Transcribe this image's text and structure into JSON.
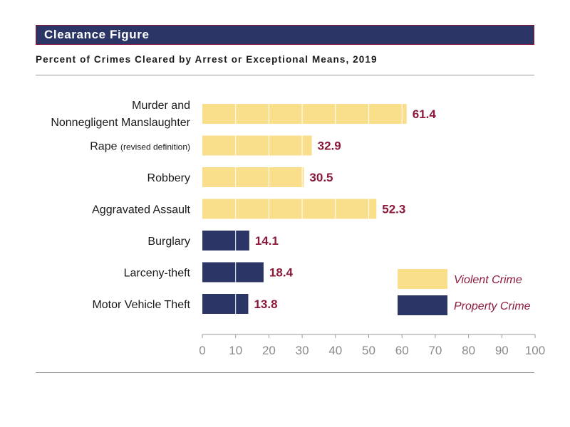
{
  "header": {
    "banner_title": "Clearance Figure",
    "subtitle": "Percent of Crimes Cleared by Arrest or Exceptional Means, 2019"
  },
  "colors": {
    "banner_bg": "#2b3566",
    "banner_border": "#8b1a3a",
    "violent": "#f9de8c",
    "property": "#2b3566",
    "label_value": "#8b1a3a",
    "legend_text": "#8b1a3a"
  },
  "chart_data": {
    "type": "bar",
    "orientation": "horizontal",
    "categories": [
      [
        "Murder and",
        "Nonnegligent Manslaughter"
      ],
      [
        "Rape (revised definition)"
      ],
      [
        "Robbery"
      ],
      [
        "Aggravated Assault"
      ],
      [
        "Burglary"
      ],
      [
        "Larceny-theft"
      ],
      [
        "Motor Vehicle Theft"
      ]
    ],
    "values": [
      61.4,
      32.9,
      30.5,
      52.3,
      14.1,
      18.4,
      13.8
    ],
    "value_labels": [
      "61.4",
      "32.9",
      "30.5",
      "52.3",
      "14.1",
      "18.4",
      "13.8"
    ],
    "groups": [
      "violent",
      "violent",
      "violent",
      "violent",
      "property",
      "property",
      "property"
    ],
    "series": [
      {
        "key": "violent",
        "name": "Violent Crime"
      },
      {
        "key": "property",
        "name": "Property Crime"
      }
    ],
    "xlim": [
      0,
      100
    ],
    "xticks": [
      0,
      10,
      20,
      30,
      40,
      50,
      60,
      70,
      80,
      90,
      100
    ],
    "grid": true,
    "legend_position": "bottom-right",
    "xlabel": "",
    "ylabel": ""
  }
}
